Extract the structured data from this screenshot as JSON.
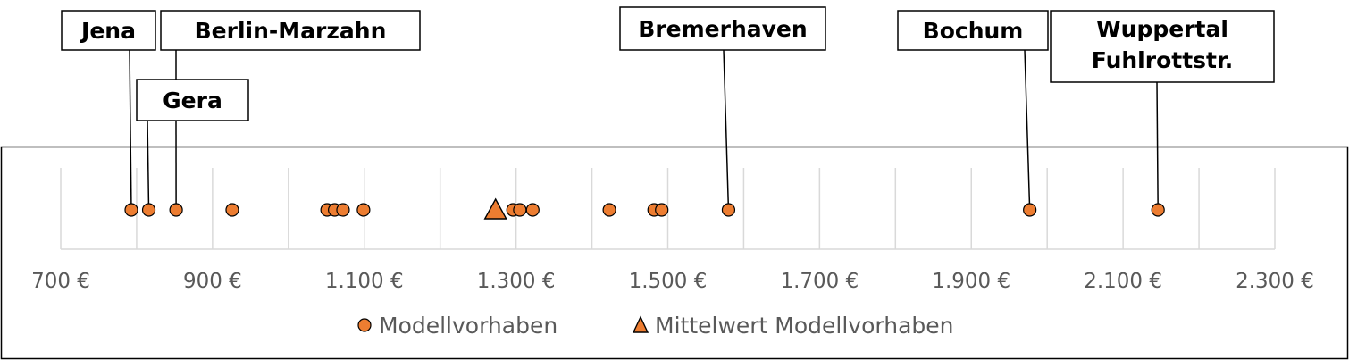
{
  "chart_data": {
    "type": "scatter",
    "title": "",
    "xlabel": "",
    "ylabel": "",
    "xlim": [
      700,
      2300
    ],
    "x_ticks": [
      700,
      800,
      900,
      1000,
      1100,
      1200,
      1300,
      1400,
      1500,
      1600,
      1700,
      1800,
      1900,
      2000,
      2100,
      2200,
      2300
    ],
    "x_tick_labels": [
      "700 €",
      "900 €",
      "1.100 €",
      "1.300 €",
      "1.500 €",
      "1.700 €",
      "1.900 €",
      "2.100 €",
      "2.300 €"
    ],
    "x_tick_label_values": [
      700,
      900,
      1100,
      1300,
      1500,
      1700,
      1900,
      2100,
      2300
    ],
    "grid": true,
    "legend_position": "bottom",
    "series": [
      {
        "name": "Modellvorhaben",
        "marker": "circle",
        "color": "#ED7D31",
        "values": [
          793,
          816,
          852,
          926,
          1051,
          1061,
          1072,
          1099,
          1296,
          1305,
          1322,
          1423,
          1482,
          1492,
          1580,
          1977,
          2146
        ]
      },
      {
        "name": "Mittelwert Modellvorhaben",
        "marker": "triangle",
        "color": "#ED7D31",
        "values": [
          1273
        ]
      }
    ],
    "annotations": [
      {
        "text": "Jena",
        "x": 793
      },
      {
        "text": "Gera",
        "x": 816
      },
      {
        "text": "Berlin-Marzahn",
        "x": 852
      },
      {
        "text": "Bremerhaven",
        "x": 1580
      },
      {
        "text": "Bochum",
        "x": 1977
      },
      {
        "text": "Wuppertal Fuhlrottstr.",
        "x": 2146
      }
    ]
  }
}
